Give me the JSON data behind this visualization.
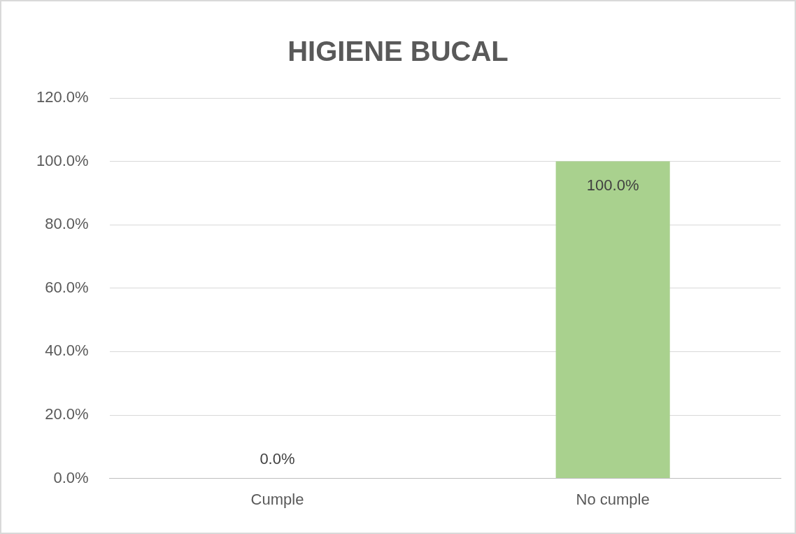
{
  "chart_data": {
    "type": "bar",
    "title": "HIGIENE BUCAL",
    "categories": [
      "Cumple",
      "No cumple"
    ],
    "values": [
      0,
      100
    ],
    "color": "#a9d18e",
    "value_labels": [
      "0.0%",
      "100.0%"
    ],
    "ylim": [
      0,
      120
    ],
    "yticks": [
      {
        "value": 0,
        "label": "0.0%"
      },
      {
        "value": 20,
        "label": "20.0%"
      },
      {
        "value": 40,
        "label": "40.0%"
      },
      {
        "value": 60,
        "label": "60.0%"
      },
      {
        "value": 80,
        "label": "80.0%"
      },
      {
        "value": 100,
        "label": "100.0%"
      },
      {
        "value": 120,
        "label": "120.0%"
      }
    ],
    "grid": "y",
    "legend": false
  }
}
